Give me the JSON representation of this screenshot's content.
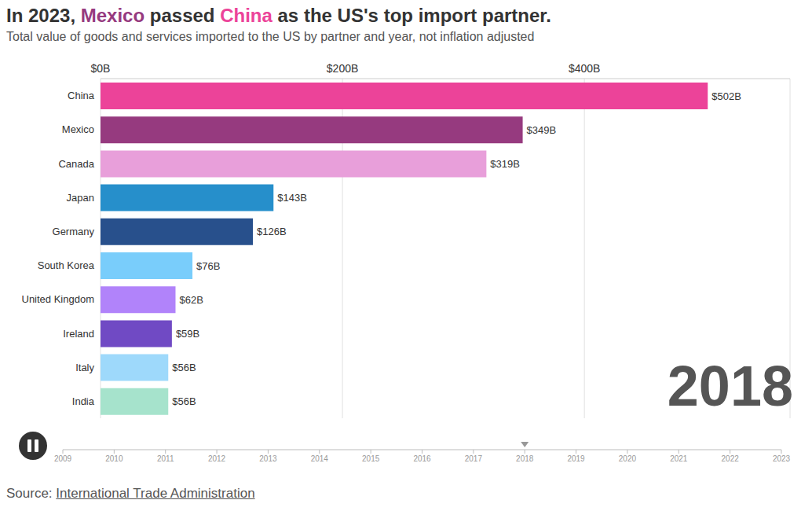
{
  "chart_data": {
    "type": "bar",
    "orientation": "horizontal",
    "title": "In 2023, Mexico passed China as the US's top import partner.",
    "subtitle": "Total value of goods and services imported to the US by partner and year, not inflation adjusted",
    "categories": [
      "China",
      "Mexico",
      "Canada",
      "Japan",
      "Germany",
      "South Korea",
      "United Kingdom",
      "Ireland",
      "Italy",
      "India"
    ],
    "values": [
      502,
      349,
      319,
      143,
      126,
      76,
      62,
      59,
      56,
      56
    ],
    "value_labels": [
      "$502B",
      "$349B",
      "$319B",
      "$143B",
      "$126B",
      "$76B",
      "$62B",
      "$59B",
      "$56B",
      "$56B"
    ],
    "colors": [
      "#ec4399",
      "#963a7f",
      "#e89fda",
      "#268fcb",
      "#28508c",
      "#79cdfb",
      "#b183fa",
      "#704ac4",
      "#9ed9fb",
      "#a6e3cc"
    ],
    "data_labels": true,
    "xlim": [
      0,
      570
    ],
    "xticks": [
      {
        "value": 0,
        "label": "$0B"
      },
      {
        "value": 200,
        "label": "$200B"
      },
      {
        "value": 400,
        "label": "$400B"
      }
    ],
    "grid": true,
    "timeline": {
      "ticks": [
        2009,
        2010,
        2011,
        2012,
        2013,
        2014,
        2015,
        2016,
        2017,
        2018,
        2019,
        2020,
        2021,
        2022,
        2023
      ],
      "current": 2018
    },
    "source": {
      "label": "Source:",
      "text": "International Trade Administration"
    }
  }
}
